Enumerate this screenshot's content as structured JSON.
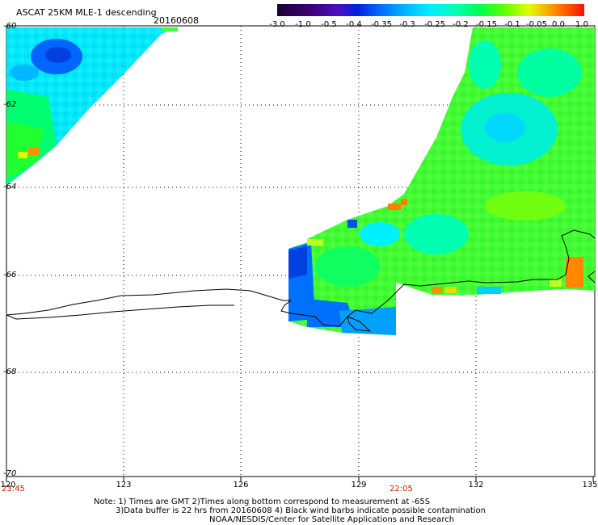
{
  "header": {
    "title": "ASCAT 25KM MLE-1 descending",
    "date": "20160608"
  },
  "colorbar": {
    "labels": [
      "-3.0",
      "-1.0",
      "-0.5",
      "-0.4",
      "-0.35",
      "-0.3",
      "-0.25",
      "-0.2",
      "-0.15",
      "-0.1",
      "-0.05",
      "0.0",
      "1.0"
    ],
    "colors": [
      "#1a0030",
      "#3a0070",
      "#5000c0",
      "#0020e0",
      "#0066ff",
      "#00b0ff",
      "#00f0ff",
      "#00ffb0",
      "#00ff40",
      "#80ff00",
      "#e0ff00",
      "#ff9000",
      "#ff2000"
    ]
  },
  "axes": {
    "lat_labels": [
      "-60",
      "-62",
      "-64",
      "-66",
      "-68",
      "-70"
    ],
    "lon_labels": [
      "120",
      "123",
      "126",
      "129",
      "132",
      "135"
    ]
  },
  "times": {
    "left": "23:45",
    "mid": "22:05"
  },
  "footer": {
    "line1": "Note: 1) Times are GMT 2)Times along bottom correspond to measurement at -65S",
    "line2": "3)Data buffer is 22 hrs from 20160608 4) Black wind barbs indicate possible contamination",
    "line3": "NOAA/NESDIS/Center for Satellite Applications and Research"
  }
}
